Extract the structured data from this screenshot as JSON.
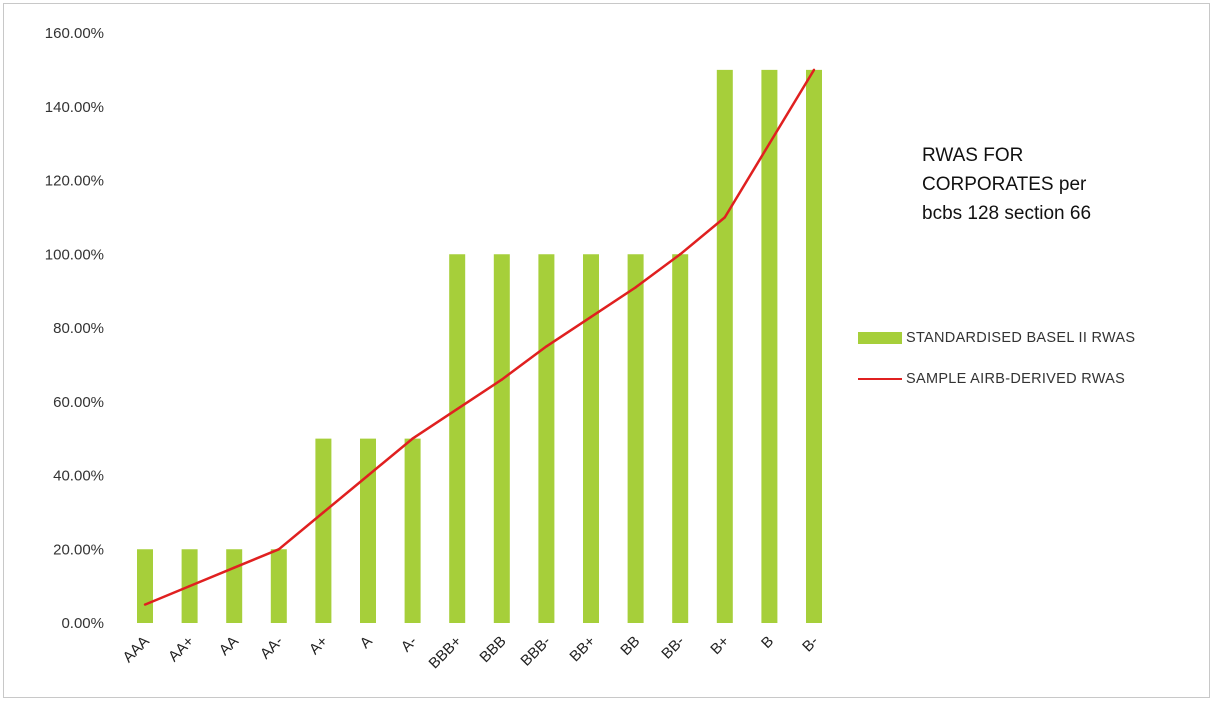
{
  "chart_data": {
    "type": "bar",
    "title": "RWAS FOR\nCORPORATES per\nbcbs 128 section 66",
    "categories": [
      "AAA",
      "AA+",
      "AA",
      "AA-",
      "A+",
      "A",
      "A-",
      "BBB+",
      "BBB",
      "BBB-",
      "BB+",
      "BB",
      "BB-",
      "B+",
      "B",
      "B-"
    ],
    "series": [
      {
        "name": "STANDARDISED  BASEL II RWAS",
        "type": "bar",
        "color": "#a6cf3a",
        "values": [
          20,
          20,
          20,
          20,
          50,
          50,
          50,
          100,
          100,
          100,
          100,
          100,
          100,
          150,
          150,
          150
        ]
      },
      {
        "name": "SAMPLE AIRB-DERIVED RWAS",
        "type": "line",
        "color": "#e02020",
        "values": [
          5,
          10,
          15,
          20,
          30,
          40,
          50,
          58,
          66,
          75,
          83,
          91,
          100,
          110,
          130,
          150
        ]
      }
    ],
    "y_ticks": [
      "0.00%",
      "20.00%",
      "40.00%",
      "60.00%",
      "80.00%",
      "100.00%",
      "120.00%",
      "140.00%",
      "160.00%"
    ],
    "ylim": [
      0,
      160
    ],
    "y_unit": "%",
    "xlabel": "",
    "ylabel": "",
    "legend_position": "right",
    "grid": false
  }
}
